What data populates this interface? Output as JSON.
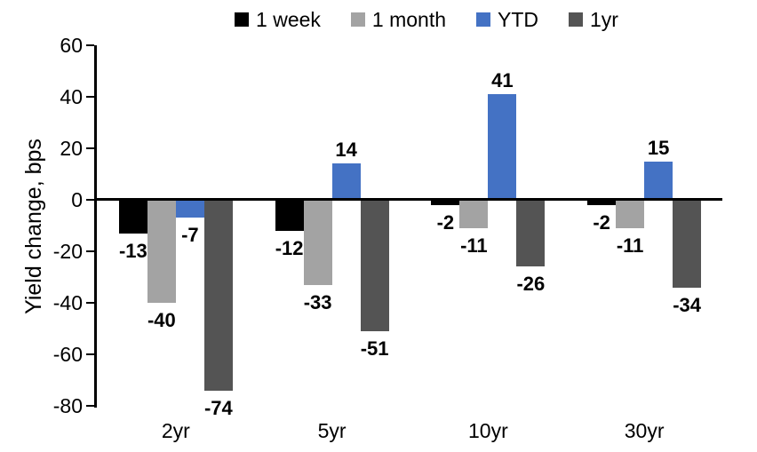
{
  "chart_data": {
    "type": "bar",
    "title": "",
    "xlabel": "",
    "ylabel": "Yield change, bps",
    "categories": [
      "2yr",
      "5yr",
      "10yr",
      "30yr"
    ],
    "series": [
      {
        "name": "1 week",
        "color": "#000000",
        "values": [
          -13,
          -12,
          -2,
          -2
        ]
      },
      {
        "name": "1 month",
        "color": "#A3A3A3",
        "values": [
          -40,
          -33,
          -11,
          -11
        ]
      },
      {
        "name": "YTD",
        "color": "#4472C4",
        "values": [
          -7,
          14,
          41,
          15
        ]
      },
      {
        "name": "1yr",
        "color": "#545454",
        "values": [
          -74,
          -51,
          -26,
          -34
        ]
      }
    ],
    "ylim": [
      -80,
      60
    ],
    "yticks": [
      60,
      40,
      20,
      0,
      -20,
      -40,
      -60,
      -80
    ],
    "grid": false,
    "legend_position": "top",
    "value_labels": "outside-end",
    "axis_color": "#000000",
    "background_color": "#FFFFFF"
  }
}
